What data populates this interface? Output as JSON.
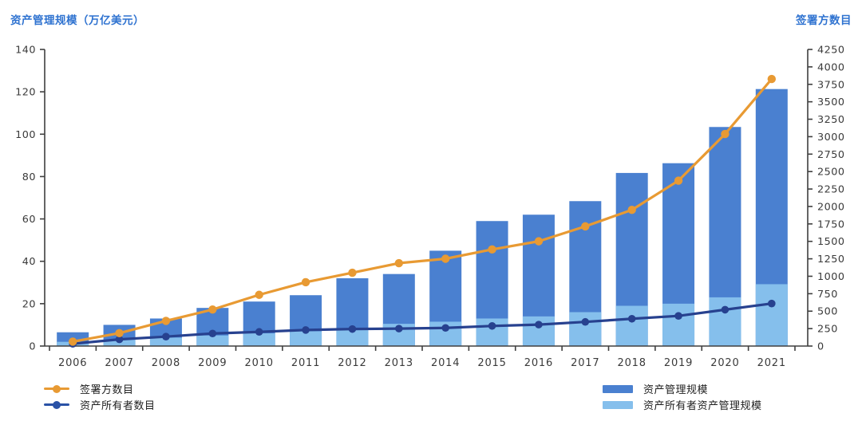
{
  "header": {
    "left_axis_title": "资产管理规模（万亿美元）",
    "right_axis_title": "签署方数目"
  },
  "legend": {
    "left": [
      {
        "label": "签署方数目",
        "type": "line",
        "color": "#E89A33"
      },
      {
        "label": "资产所有者数目",
        "type": "line",
        "color": "#2A52A6"
      }
    ],
    "right": [
      {
        "label": "资产管理规模",
        "type": "bar",
        "color": "#4A80D0"
      },
      {
        "label": "资产所有者资产管理规模",
        "type": "bar",
        "color": "#85BFEC"
      }
    ]
  },
  "chart_data": {
    "type": "bar",
    "subtype": "stacked-overlay-bars-with-lines",
    "title": "",
    "categories": [
      "2006",
      "2007",
      "2008",
      "2009",
      "2010",
      "2011",
      "2012",
      "2013",
      "2014",
      "2015",
      "2016",
      "2017",
      "2018",
      "2019",
      "2020",
      "2021"
    ],
    "series": [
      {
        "name": "资产管理规模",
        "type": "bar",
        "axis": "left",
        "color": "#4A80D0",
        "values": [
          6.5,
          10,
          13,
          18,
          21,
          24,
          32,
          34,
          45,
          59,
          62,
          68.4,
          81.7,
          86.3,
          103.4,
          121.3
        ]
      },
      {
        "name": "资产所有者资产管理规模",
        "type": "bar-overlay",
        "axis": "left",
        "color": "#85BFEC",
        "values": [
          2,
          3,
          4,
          5,
          6,
          7,
          8,
          10.5,
          11.5,
          13,
          14,
          16,
          19,
          20,
          23,
          29.2
        ]
      },
      {
        "name": "资产所有者数目",
        "type": "line",
        "axis": "right",
        "color": "#27418F",
        "values": [
          32,
          96,
          135,
          180,
          203,
          230,
          244,
          250,
          260,
          288,
          307,
          346,
          391,
          432,
          521,
          609
        ]
      },
      {
        "name": "签署方数目",
        "type": "line",
        "axis": "right",
        "color": "#E89A33",
        "values": [
          63,
          185,
          361,
          523,
          734,
          915,
          1050,
          1188,
          1251,
          1384,
          1501,
          1715,
          1951,
          2370,
          3038,
          3826
        ]
      }
    ],
    "left_axis": {
      "title": "资产管理规模（万亿美元）",
      "min": 0,
      "max": 140,
      "step": 20,
      "tick_labels": [
        "0",
        "20",
        "40",
        "60",
        "80",
        "100",
        "120",
        "140"
      ]
    },
    "right_axis": {
      "title": "签署方数目",
      "min": 0,
      "max": 4250,
      "step": 250,
      "tick_labels": [
        "0",
        "250",
        "500",
        "750",
        "1000",
        "1250",
        "1500",
        "1750",
        "2000",
        "2250",
        "2500",
        "2750",
        "3000",
        "3250",
        "3500",
        "3750",
        "4000",
        "4250"
      ]
    },
    "grid": false,
    "legend_position": "bottom",
    "axis_color": "#3F3F3F",
    "label_color": "#3A3A3A"
  }
}
